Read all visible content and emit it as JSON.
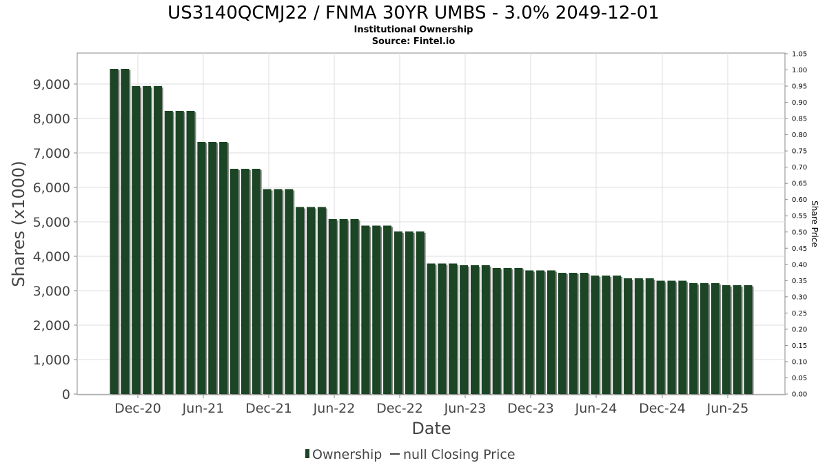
{
  "chart_data": {
    "type": "bar",
    "title": "US3140QCMJ22 / FNMA 30YR UMBS - 3.0% 2049-12-01",
    "subtitle_lines": [
      "Institutional Ownership",
      "Source: Fintel.io"
    ],
    "xlabel": "Date",
    "ylabel": "Shares (x1000)",
    "y2label": "Share Price",
    "ylim": [
      0,
      9300
    ],
    "y2lim": [
      0,
      1.05
    ],
    "yticks": [
      "0",
      "1,000",
      "2,000",
      "3,000",
      "4,000",
      "5,000",
      "6,000",
      "7,000",
      "8,000",
      "9,000"
    ],
    "y2ticks": [
      "0.00",
      "0.05",
      "0.10",
      "0.15",
      "0.20",
      "0.25",
      "0.30",
      "0.35",
      "0.40",
      "0.45",
      "0.50",
      "0.55",
      "0.60",
      "0.65",
      "0.70",
      "0.75",
      "0.80",
      "0.85",
      "0.90",
      "0.95",
      "1.00",
      "1.05"
    ],
    "xticks": [
      "Dec-20",
      "Jun-21",
      "Dec-21",
      "Jun-22",
      "Dec-22",
      "Jun-23",
      "Dec-23",
      "Jun-24",
      "Dec-24",
      "Jun-25"
    ],
    "grid": true,
    "legend": {
      "position": "bottom",
      "entries": [
        {
          "label": "Ownership",
          "color": "#1b4524"
        },
        {
          "label": "null Closing Price",
          "color": "#444444"
        }
      ]
    },
    "series": [
      {
        "name": "Ownership",
        "color": "#1b4524",
        "values": [
          9440,
          9440,
          8940,
          8940,
          8940,
          8220,
          8220,
          8220,
          7320,
          7320,
          7320,
          6540,
          6540,
          6540,
          5950,
          5950,
          5950,
          5430,
          5430,
          5430,
          5080,
          5080,
          5080,
          4890,
          4890,
          4890,
          4720,
          4720,
          4720,
          3790,
          3790,
          3790,
          3740,
          3740,
          3740,
          3660,
          3660,
          3660,
          3590,
          3590,
          3590,
          3520,
          3520,
          3520,
          3440,
          3440,
          3440,
          3360,
          3360,
          3360,
          3290,
          3290,
          3290,
          3220,
          3220,
          3220,
          3160,
          3160,
          3160
        ]
      }
    ]
  }
}
